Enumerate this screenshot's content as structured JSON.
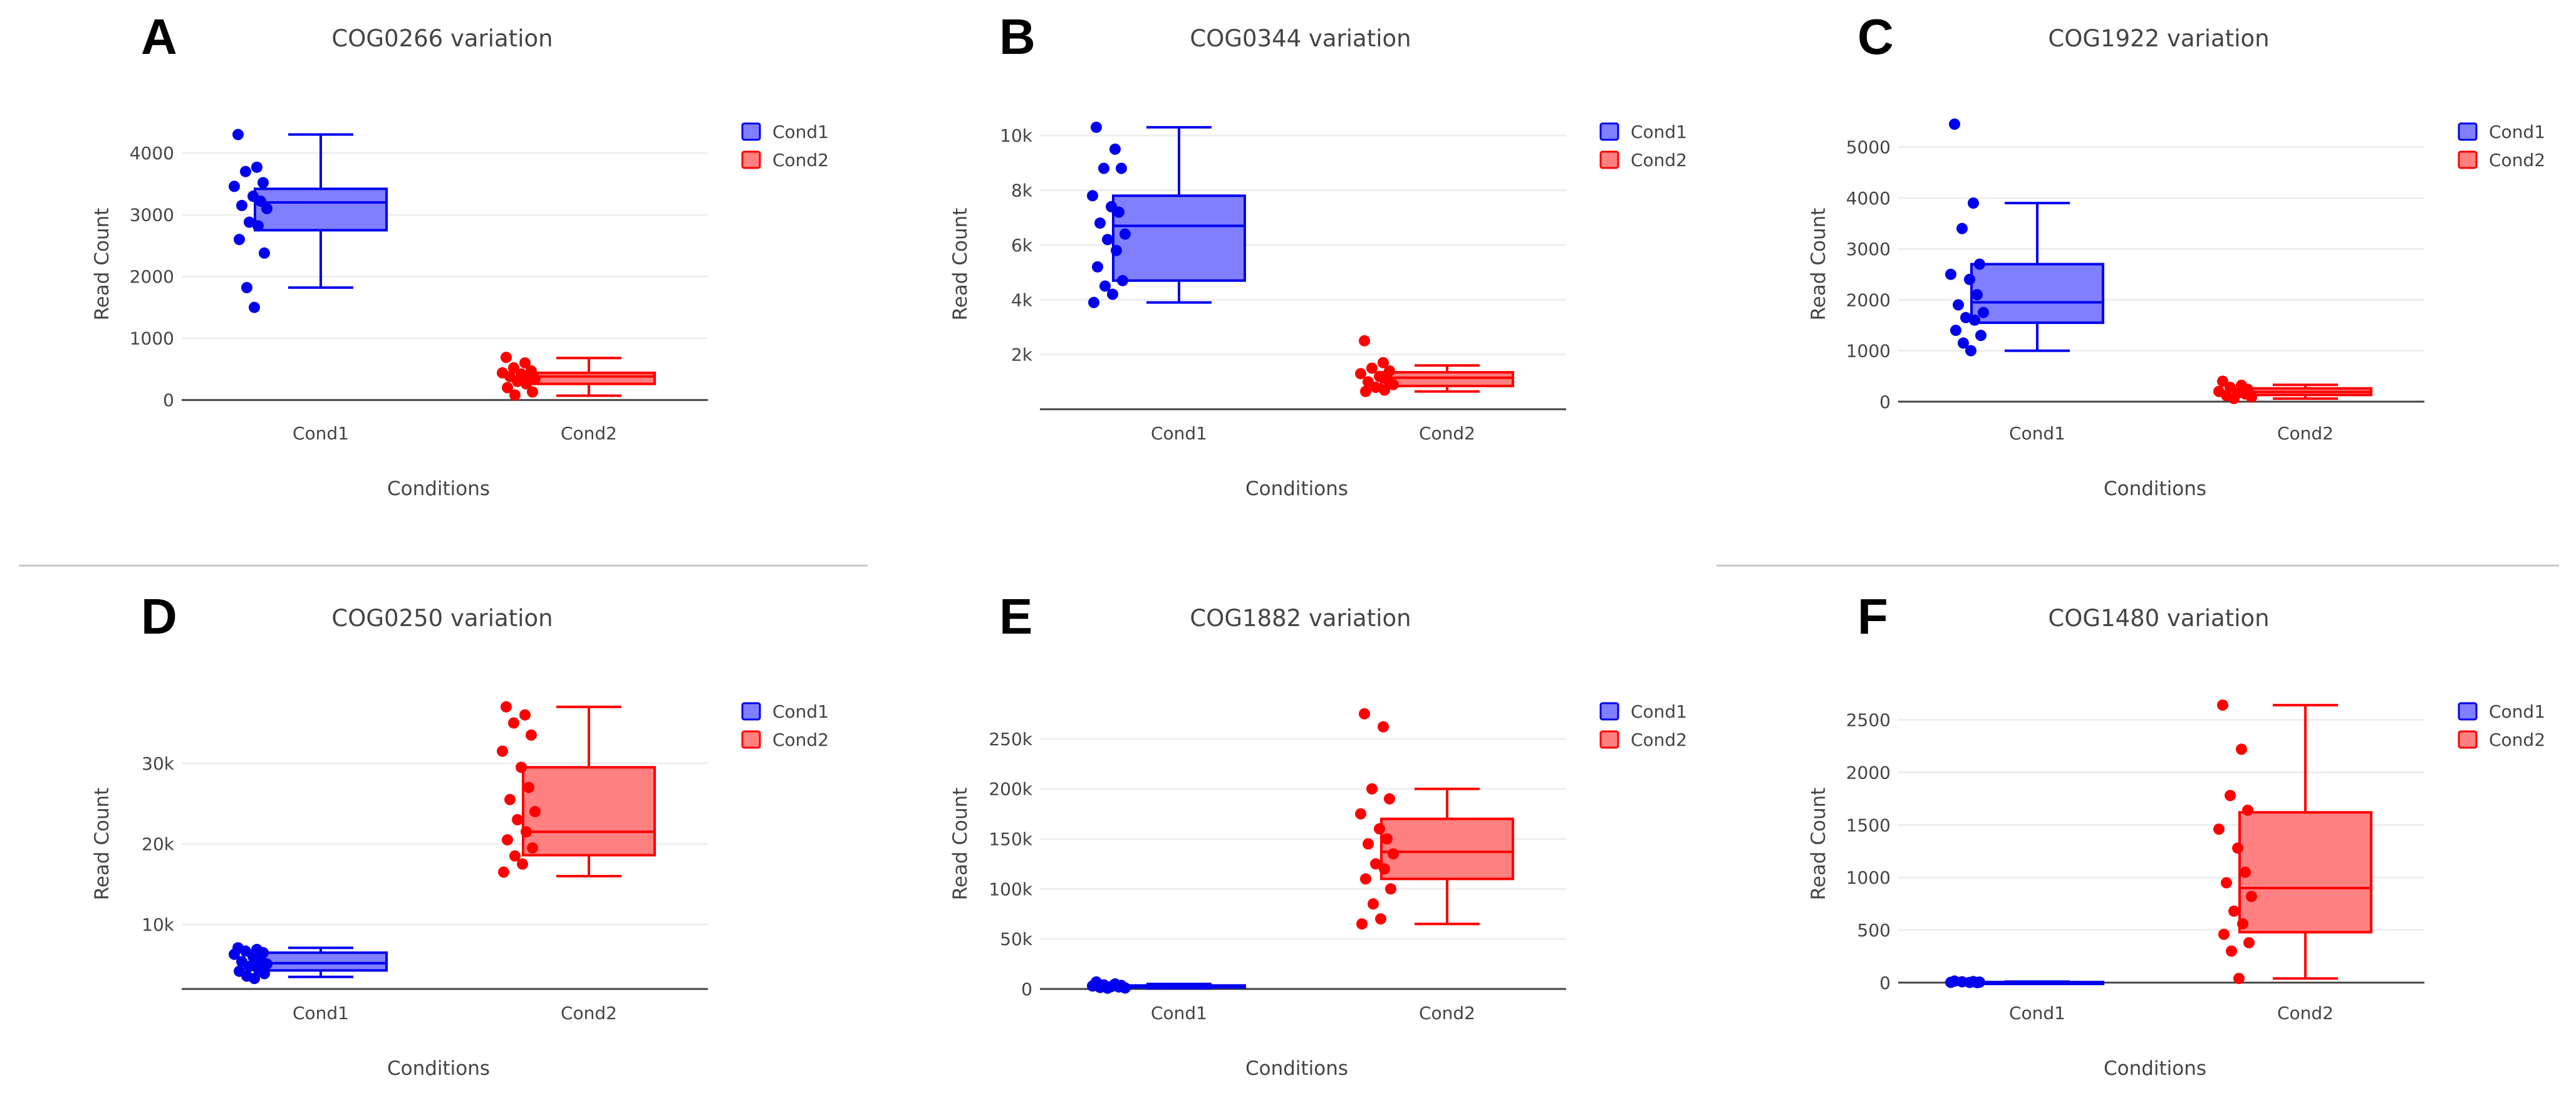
{
  "chart_data": [
    {
      "panel": "A",
      "type": "box",
      "title": "COG0266 variation",
      "xlabel": "Conditions",
      "ylabel": "Read Count",
      "categories": [
        "Cond1",
        "Cond2"
      ],
      "ylim": [
        -150,
        4550
      ],
      "yticks": [
        {
          "v": 0,
          "t": "0"
        },
        {
          "v": 1000,
          "t": "1000"
        },
        {
          "v": 2000,
          "t": "2000"
        },
        {
          "v": 3000,
          "t": "3000"
        },
        {
          "v": 4000,
          "t": "4000"
        }
      ],
      "legend": [
        "Cond1",
        "Cond2"
      ],
      "colors": {
        "cond1": "#0000ee",
        "cond1_fill": "#8080ff",
        "cond2": "#ff0000",
        "cond2_fill": "#ff8080"
      },
      "series": [
        {
          "name": "Cond1",
          "box": {
            "min": 1820,
            "q1": 2750,
            "median": 3200,
            "q3": 3420,
            "max": 4300
          },
          "points": [
            4300,
            3770,
            3700,
            3520,
            3460,
            3300,
            3220,
            3150,
            3100,
            2880,
            2820,
            2600,
            2380,
            1820,
            1500
          ]
        },
        {
          "name": "Cond2",
          "box": {
            "min": 70,
            "q1": 260,
            "median": 380,
            "q3": 440,
            "max": 680
          },
          "points": [
            690,
            600,
            520,
            470,
            440,
            420,
            400,
            380,
            340,
            300,
            260,
            200,
            130,
            80
          ]
        }
      ]
    },
    {
      "panel": "B",
      "type": "box",
      "title": "COG0344 variation",
      "xlabel": "Conditions",
      "ylabel": "Read Count",
      "categories": [
        "Cond1",
        "Cond2"
      ],
      "ylim": [
        0,
        10600
      ],
      "yticks": [
        {
          "v": 2000,
          "t": "2k"
        },
        {
          "v": 4000,
          "t": "4k"
        },
        {
          "v": 6000,
          "t": "6k"
        },
        {
          "v": 8000,
          "t": "8k"
        },
        {
          "v": 10000,
          "t": "10k"
        }
      ],
      "legend": [
        "Cond1",
        "Cond2"
      ],
      "colors": {
        "cond1": "#0000ee",
        "cond1_fill": "#8080ff",
        "cond2": "#ff0000",
        "cond2_fill": "#ff8080"
      },
      "series": [
        {
          "name": "Cond1",
          "box": {
            "min": 3900,
            "q1": 4700,
            "median": 6700,
            "q3": 7800,
            "max": 10300
          },
          "points": [
            10300,
            9500,
            8800,
            8800,
            7800,
            7400,
            7200,
            6800,
            6400,
            6200,
            5800,
            5200,
            4700,
            4500,
            4200,
            3900
          ]
        },
        {
          "name": "Cond2",
          "box": {
            "min": 650,
            "q1": 850,
            "median": 1150,
            "q3": 1350,
            "max": 1600
          },
          "points": [
            2500,
            1700,
            1500,
            1400,
            1300,
            1200,
            1100,
            1000,
            900,
            800,
            700,
            650
          ]
        }
      ]
    },
    {
      "panel": "C",
      "type": "box",
      "title": "COG1922 variation",
      "xlabel": "Conditions",
      "ylabel": "Read Count",
      "categories": [
        "Cond1",
        "Cond2"
      ],
      "ylim": [
        -150,
        5550
      ],
      "yticks": [
        {
          "v": 0,
          "t": "0"
        },
        {
          "v": 1000,
          "t": "1000"
        },
        {
          "v": 2000,
          "t": "2000"
        },
        {
          "v": 3000,
          "t": "3000"
        },
        {
          "v": 4000,
          "t": "4000"
        },
        {
          "v": 5000,
          "t": "5000"
        }
      ],
      "legend": [
        "Cond1",
        "Cond2"
      ],
      "colors": {
        "cond1": "#0000ee",
        "cond1_fill": "#8080ff",
        "cond2": "#ff0000",
        "cond2_fill": "#ff8080"
      },
      "series": [
        {
          "name": "Cond1",
          "box": {
            "min": 1000,
            "q1": 1550,
            "median": 1950,
            "q3": 2700,
            "max": 3900
          },
          "points": [
            5450,
            3900,
            3400,
            2700,
            2500,
            2400,
            2100,
            1900,
            1750,
            1650,
            1600,
            1400,
            1300,
            1150,
            1000
          ]
        },
        {
          "name": "Cond2",
          "box": {
            "min": 60,
            "q1": 130,
            "median": 190,
            "q3": 260,
            "max": 330
          },
          "points": [
            400,
            320,
            280,
            240,
            200,
            170,
            150,
            120,
            90,
            60
          ]
        }
      ]
    },
    {
      "panel": "D",
      "type": "box",
      "title": "COG0250 variation",
      "xlabel": "Conditions",
      "ylabel": "Read Count",
      "categories": [
        "Cond1",
        "Cond2"
      ],
      "ylim": [
        2000,
        38000
      ],
      "yticks": [
        {
          "v": 10000,
          "t": "10k"
        },
        {
          "v": 20000,
          "t": "20k"
        },
        {
          "v": 30000,
          "t": "30k"
        }
      ],
      "legend": [
        "Cond1",
        "Cond2"
      ],
      "colors": {
        "cond1": "#0000ee",
        "cond1_fill": "#8080ff",
        "cond2": "#ff0000",
        "cond2_fill": "#ff8080"
      },
      "series": [
        {
          "name": "Cond1",
          "box": {
            "min": 3500,
            "q1": 4300,
            "median": 5200,
            "q3": 6500,
            "max": 7100
          },
          "points": [
            7100,
            6900,
            6700,
            6500,
            6300,
            6000,
            5700,
            5400,
            5100,
            4800,
            4500,
            4200,
            3900,
            3600,
            3300
          ]
        },
        {
          "name": "Cond2",
          "box": {
            "min": 16000,
            "q1": 18600,
            "median": 21500,
            "q3": 29500,
            "max": 37000
          },
          "points": [
            37000,
            36000,
            35000,
            33500,
            31500,
            29500,
            27000,
            25500,
            24000,
            23000,
            21500,
            20500,
            19500,
            18500,
            17500,
            16500
          ]
        }
      ]
    },
    {
      "panel": "E",
      "type": "box",
      "title": "COG1882 variation",
      "xlabel": "Conditions",
      "ylabel": "Read Count",
      "categories": [
        "Cond1",
        "Cond2"
      ],
      "ylim": [
        0,
        290000
      ],
      "yticks": [
        {
          "v": 0,
          "t": "0"
        },
        {
          "v": 50000,
          "t": "50k"
        },
        {
          "v": 100000,
          "t": "100k"
        },
        {
          "v": 150000,
          "t": "150k"
        },
        {
          "v": 200000,
          "t": "200k"
        },
        {
          "v": 250000,
          "t": "250k"
        }
      ],
      "legend": [
        "Cond1",
        "Cond2"
      ],
      "colors": {
        "cond1": "#0000ee",
        "cond1_fill": "#8080ff",
        "cond2": "#ff0000",
        "cond2_fill": "#ff8080"
      },
      "series": [
        {
          "name": "Cond1",
          "box": {
            "min": 800,
            "q1": 1500,
            "median": 2500,
            "q3": 3500,
            "max": 5000
          },
          "points": [
            7000,
            5000,
            4000,
            3500,
            3000,
            2500,
            2000,
            1500,
            1000,
            800
          ]
        },
        {
          "name": "Cond2",
          "box": {
            "min": 65000,
            "q1": 110000,
            "median": 137000,
            "q3": 170000,
            "max": 200000
          },
          "points": [
            275000,
            262000,
            200000,
            190000,
            175000,
            160000,
            150000,
            145000,
            135000,
            125000,
            120000,
            110000,
            100000,
            85000,
            70000,
            65000
          ]
        }
      ]
    },
    {
      "panel": "F",
      "type": "box",
      "title": "COG1480 variation",
      "xlabel": "Conditions",
      "ylabel": "Read Count",
      "categories": [
        "Cond1",
        "Cond2"
      ],
      "ylim": [
        -60,
        2700
      ],
      "yticks": [
        {
          "v": 0,
          "t": "0"
        },
        {
          "v": 500,
          "t": "500"
        },
        {
          "v": 1000,
          "t": "1000"
        },
        {
          "v": 1500,
          "t": "1500"
        },
        {
          "v": 2000,
          "t": "2000"
        },
        {
          "v": 2500,
          "t": "2500"
        }
      ],
      "legend": [
        "Cond1",
        "Cond2"
      ],
      "colors": {
        "cond1": "#0000ee",
        "cond1_fill": "#8080ff",
        "cond2": "#ff0000",
        "cond2_fill": "#ff8080"
      },
      "series": [
        {
          "name": "Cond1",
          "box": {
            "min": 0,
            "q1": 2,
            "median": 4,
            "q3": 6,
            "max": 10
          },
          "points": [
            15,
            10,
            8,
            5,
            3,
            2,
            0
          ]
        },
        {
          "name": "Cond2",
          "box": {
            "min": 40,
            "q1": 480,
            "median": 900,
            "q3": 1620,
            "max": 2640
          },
          "points": [
            2640,
            2220,
            1780,
            1640,
            1460,
            1280,
            1050,
            950,
            820,
            680,
            560,
            460,
            380,
            300,
            40
          ]
        }
      ]
    }
  ]
}
